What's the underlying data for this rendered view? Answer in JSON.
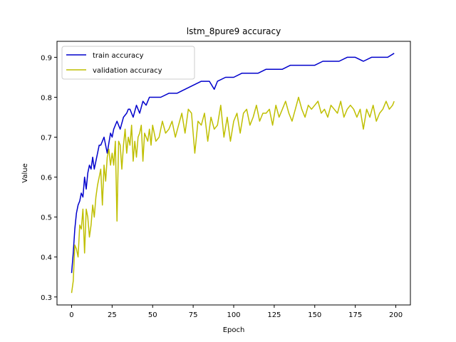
{
  "chart_data": {
    "type": "line",
    "title": "lstm_8pure9 accuracy",
    "xlabel": "Epoch",
    "ylabel": "Value",
    "xlim": [
      -9,
      209
    ],
    "ylim": [
      0.28,
      0.94
    ],
    "xticks": [
      0,
      25,
      50,
      75,
      100,
      125,
      150,
      175,
      200
    ],
    "yticks": [
      0.3,
      0.4,
      0.5,
      0.6,
      0.7,
      0.8,
      0.9
    ],
    "grid": false,
    "legend_position": "upper left",
    "series": [
      {
        "name": "train accuracy",
        "color": "#0000cc",
        "x": [
          0,
          1,
          2,
          3,
          4,
          5,
          6,
          7,
          8,
          9,
          10,
          11,
          12,
          13,
          14,
          15,
          16,
          17,
          18,
          19,
          20,
          22,
          24,
          25,
          26,
          28,
          30,
          32,
          34,
          35,
          36,
          38,
          40,
          42,
          44,
          46,
          48,
          50,
          55,
          60,
          65,
          70,
          75,
          80,
          85,
          88,
          90,
          95,
          100,
          105,
          110,
          115,
          120,
          125,
          130,
          135,
          140,
          145,
          150,
          155,
          160,
          165,
          170,
          175,
          180,
          185,
          190,
          195,
          199
        ],
        "values": [
          0.36,
          0.41,
          0.47,
          0.51,
          0.53,
          0.54,
          0.56,
          0.55,
          0.6,
          0.57,
          0.61,
          0.63,
          0.62,
          0.65,
          0.62,
          0.64,
          0.66,
          0.68,
          0.68,
          0.69,
          0.7,
          0.66,
          0.71,
          0.7,
          0.72,
          0.74,
          0.72,
          0.75,
          0.76,
          0.77,
          0.77,
          0.75,
          0.78,
          0.76,
          0.79,
          0.78,
          0.8,
          0.8,
          0.8,
          0.81,
          0.81,
          0.82,
          0.83,
          0.84,
          0.84,
          0.82,
          0.84,
          0.85,
          0.85,
          0.86,
          0.86,
          0.86,
          0.87,
          0.87,
          0.87,
          0.88,
          0.88,
          0.88,
          0.88,
          0.89,
          0.89,
          0.89,
          0.9,
          0.9,
          0.89,
          0.9,
          0.9,
          0.9,
          0.91
        ]
      },
      {
        "name": "validation accuracy",
        "color": "#bfbf00",
        "x": [
          0,
          1,
          2,
          3,
          4,
          5,
          6,
          7,
          8,
          9,
          10,
          11,
          12,
          13,
          14,
          15,
          16,
          17,
          18,
          19,
          20,
          21,
          22,
          23,
          24,
          25,
          26,
          27,
          28,
          29,
          30,
          31,
          32,
          33,
          34,
          35,
          36,
          37,
          38,
          39,
          40,
          41,
          42,
          43,
          44,
          45,
          46,
          47,
          48,
          49,
          50,
          52,
          54,
          56,
          58,
          60,
          62,
          64,
          66,
          68,
          70,
          72,
          74,
          76,
          78,
          80,
          82,
          84,
          86,
          88,
          90,
          92,
          94,
          96,
          98,
          100,
          102,
          104,
          106,
          108,
          110,
          112,
          114,
          116,
          118,
          120,
          122,
          124,
          126,
          128,
          130,
          132,
          134,
          136,
          138,
          140,
          142,
          144,
          146,
          148,
          150,
          152,
          154,
          156,
          158,
          160,
          162,
          164,
          166,
          168,
          170,
          172,
          174,
          176,
          178,
          180,
          182,
          184,
          186,
          188,
          190,
          192,
          194,
          196,
          198,
          199
        ],
        "values": [
          0.31,
          0.34,
          0.43,
          0.42,
          0.4,
          0.48,
          0.47,
          0.52,
          0.41,
          0.52,
          0.5,
          0.45,
          0.48,
          0.53,
          0.5,
          0.55,
          0.58,
          0.6,
          0.62,
          0.53,
          0.63,
          0.59,
          0.65,
          0.67,
          0.63,
          0.66,
          0.63,
          0.69,
          0.49,
          0.69,
          0.68,
          0.62,
          0.68,
          0.72,
          0.66,
          0.7,
          0.68,
          0.73,
          0.64,
          0.69,
          0.65,
          0.7,
          0.71,
          0.73,
          0.64,
          0.71,
          0.7,
          0.69,
          0.72,
          0.68,
          0.73,
          0.69,
          0.7,
          0.74,
          0.71,
          0.72,
          0.74,
          0.7,
          0.73,
          0.76,
          0.71,
          0.77,
          0.76,
          0.66,
          0.74,
          0.73,
          0.76,
          0.69,
          0.75,
          0.72,
          0.73,
          0.78,
          0.7,
          0.75,
          0.69,
          0.74,
          0.76,
          0.71,
          0.76,
          0.77,
          0.73,
          0.75,
          0.78,
          0.74,
          0.76,
          0.76,
          0.77,
          0.73,
          0.78,
          0.75,
          0.77,
          0.79,
          0.76,
          0.74,
          0.77,
          0.8,
          0.77,
          0.75,
          0.78,
          0.77,
          0.78,
          0.79,
          0.76,
          0.77,
          0.75,
          0.78,
          0.77,
          0.76,
          0.79,
          0.75,
          0.77,
          0.78,
          0.77,
          0.75,
          0.77,
          0.72,
          0.77,
          0.75,
          0.78,
          0.74,
          0.76,
          0.77,
          0.79,
          0.77,
          0.78,
          0.79
        ]
      }
    ]
  }
}
